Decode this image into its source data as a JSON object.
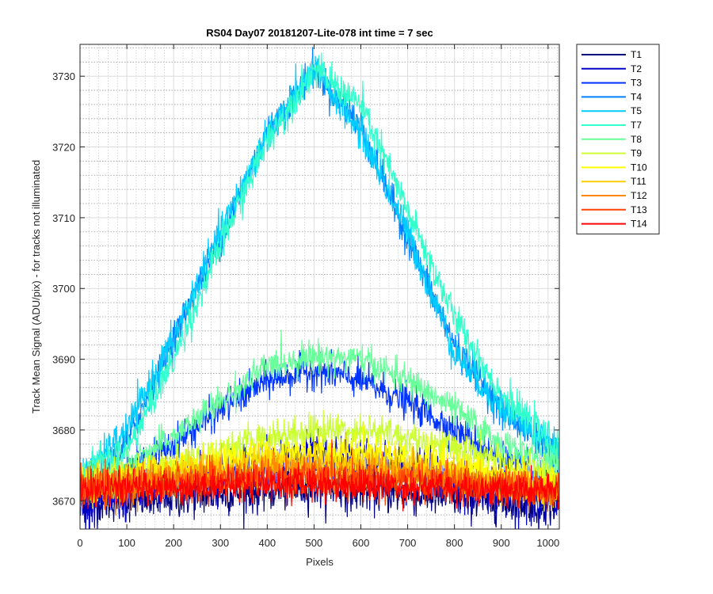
{
  "chart_data": {
    "type": "line",
    "title": "RS04 Day07 20181207-Lite-078 int time = 7 sec",
    "xlabel": "Pixels",
    "ylabel": "Track Mean Signal (ADU/pix) - for tracks not illuminated",
    "xlim": [
      0,
      1024
    ],
    "ylim": [
      3666,
      3734.5
    ],
    "xticks": [
      0,
      100,
      200,
      300,
      400,
      500,
      600,
      700,
      800,
      900,
      1000
    ],
    "yticks": [
      3670,
      3680,
      3690,
      3700,
      3710,
      3720,
      3730
    ],
    "grid": true,
    "minor_grid": true,
    "legend_position": "outside-top-right",
    "x_sample": [
      0,
      100,
      200,
      300,
      400,
      500,
      600,
      700,
      800,
      900,
      1024
    ],
    "series": [
      {
        "name": "T1",
        "color": "#00007f",
        "values": [
          3670,
          3670,
          3670.5,
          3671,
          3671.5,
          3672,
          3671.5,
          3671,
          3670.5,
          3670,
          3669.5
        ],
        "noise": 1.5
      },
      {
        "name": "T2",
        "color": "#0000c8",
        "values": [
          3670,
          3671,
          3672.5,
          3674,
          3675.5,
          3676,
          3675.5,
          3674.5,
          3673,
          3671.5,
          3670
        ],
        "noise": 1.8
      },
      {
        "name": "T3",
        "color": "#0033ff",
        "values": [
          3671,
          3674,
          3678,
          3683,
          3687,
          3688.5,
          3687,
          3684,
          3680,
          3676,
          3672
        ],
        "noise": 1.2
      },
      {
        "name": "T4",
        "color": "#0080ff",
        "values": [
          3671,
          3678,
          3693,
          3707,
          3722,
          3731,
          3723,
          3707,
          3692,
          3683,
          3676
        ],
        "noise": 1.2
      },
      {
        "name": "T5",
        "color": "#00ccff",
        "values": [
          3673,
          3680,
          3693,
          3708,
          3722,
          3731,
          3722,
          3708,
          3691,
          3683,
          3677
        ],
        "noise": 1.2
      },
      {
        "name": "T7",
        "color": "#33ffcc",
        "values": [
          3674,
          3677,
          3690,
          3706,
          3721,
          3731,
          3726,
          3711,
          3696,
          3685,
          3677
        ],
        "noise": 1.2
      },
      {
        "name": "T8",
        "color": "#66ff99",
        "values": [
          3673,
          3675,
          3679,
          3684,
          3689,
          3690.5,
          3690,
          3687,
          3683,
          3678,
          3675
        ],
        "noise": 1.1
      },
      {
        "name": "T9",
        "color": "#ccff33",
        "values": [
          3672,
          3673.5,
          3675,
          3677,
          3679,
          3680,
          3680,
          3679,
          3677.5,
          3675.5,
          3673.5
        ],
        "noise": 1.2
      },
      {
        "name": "T10",
        "color": "#ffff00",
        "values": [
          3671.5,
          3673,
          3674.5,
          3675.5,
          3676.5,
          3677,
          3677,
          3676,
          3675,
          3673.5,
          3672
        ],
        "noise": 1.3
      },
      {
        "name": "T11",
        "color": "#ffcc00",
        "values": [
          3671.5,
          3672.5,
          3673.5,
          3674.5,
          3675,
          3675.5,
          3675,
          3674.5,
          3673.5,
          3672.5,
          3671.5
        ],
        "noise": 1.3
      },
      {
        "name": "T12",
        "color": "#ff8800",
        "values": [
          3671.5,
          3672,
          3673,
          3673.5,
          3674,
          3674,
          3674,
          3673.5,
          3673,
          3672,
          3671.5
        ],
        "noise": 1.3
      },
      {
        "name": "T13",
        "color": "#ff4400",
        "values": [
          3671.5,
          3672,
          3672.5,
          3673,
          3673,
          3673.2,
          3673,
          3672.8,
          3672.3,
          3672,
          3671.5
        ],
        "noise": 1.3
      },
      {
        "name": "T14",
        "color": "#ff0000",
        "values": [
          3671.5,
          3671.8,
          3672,
          3672.3,
          3672.5,
          3672.5,
          3672.3,
          3672,
          3671.8,
          3671.5,
          3671.3
        ],
        "noise": 1.2
      }
    ]
  }
}
